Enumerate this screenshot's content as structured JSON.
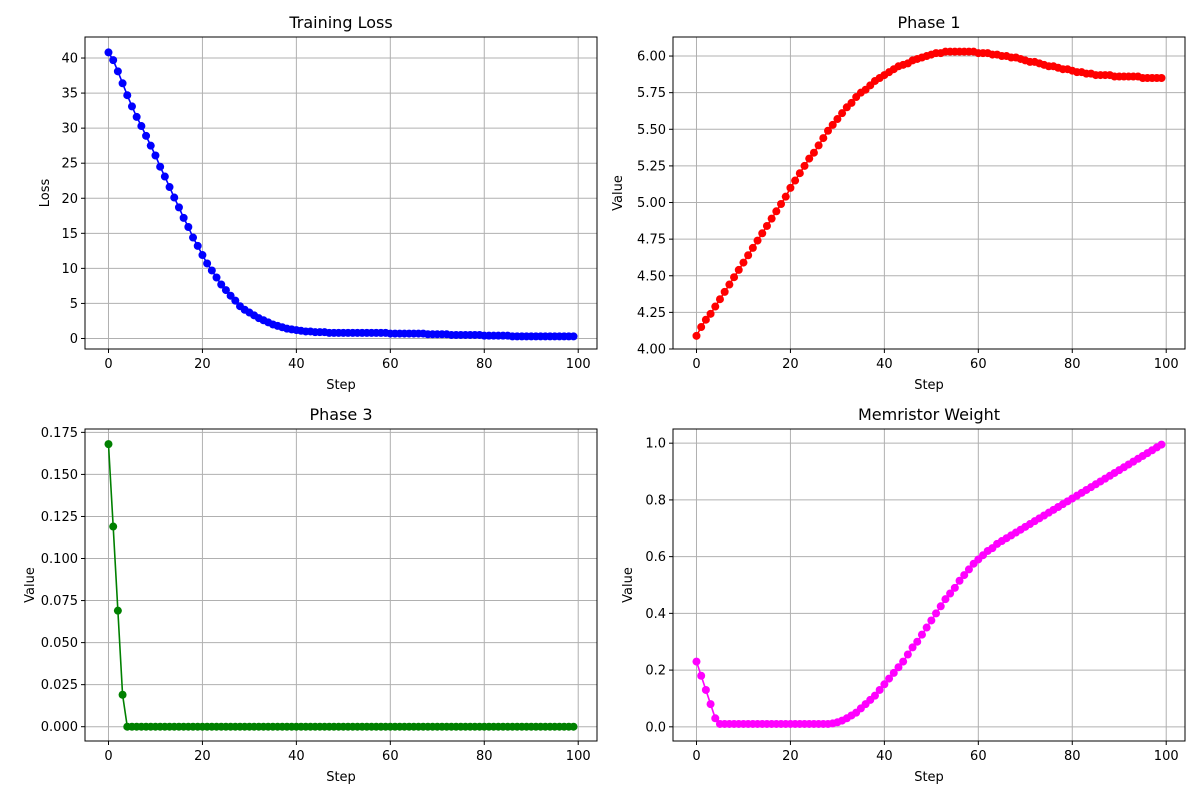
{
  "chart_data": [
    {
      "type": "line",
      "title": "Training Loss",
      "xlabel": "Step",
      "ylabel": "Loss",
      "xlim": [
        -5,
        104
      ],
      "ylim": [
        -1.5,
        43
      ],
      "xticks": [
        0,
        20,
        40,
        60,
        80,
        100
      ],
      "yticks": [
        0,
        5,
        10,
        15,
        20,
        25,
        30,
        35,
        40
      ],
      "ytick_decimals": 0,
      "grid": true,
      "color": "#0000ff",
      "marker": "circle",
      "series": [
        {
          "x_start": 0,
          "x_step": 1,
          "values": [
            40.8,
            39.7,
            38.1,
            36.4,
            34.7,
            33.1,
            31.6,
            30.3,
            28.9,
            27.5,
            26.1,
            24.5,
            23.1,
            21.6,
            20.1,
            18.7,
            17.2,
            15.9,
            14.4,
            13.2,
            11.9,
            10.7,
            9.7,
            8.7,
            7.7,
            6.9,
            6.1,
            5.4,
            4.6,
            4.1,
            3.7,
            3.3,
            2.9,
            2.6,
            2.3,
            2.0,
            1.8,
            1.6,
            1.4,
            1.3,
            1.2,
            1.1,
            1.0,
            1.0,
            0.9,
            0.9,
            0.9,
            0.8,
            0.8,
            0.8,
            0.8,
            0.8,
            0.8,
            0.8,
            0.8,
            0.8,
            0.8,
            0.8,
            0.8,
            0.8,
            0.7,
            0.7,
            0.7,
            0.7,
            0.7,
            0.7,
            0.7,
            0.7,
            0.6,
            0.6,
            0.6,
            0.6,
            0.6,
            0.5,
            0.5,
            0.5,
            0.5,
            0.5,
            0.5,
            0.5,
            0.4,
            0.4,
            0.4,
            0.4,
            0.4,
            0.4,
            0.3,
            0.3,
            0.3,
            0.3,
            0.3,
            0.3,
            0.3,
            0.3,
            0.3,
            0.3,
            0.3,
            0.3,
            0.3,
            0.3
          ]
        }
      ]
    },
    {
      "type": "line",
      "title": "Phase 1",
      "xlabel": "Step",
      "ylabel": "Value",
      "xlim": [
        -5,
        104
      ],
      "ylim": [
        4.0,
        6.13
      ],
      "xticks": [
        0,
        20,
        40,
        60,
        80,
        100
      ],
      "yticks": [
        4.0,
        4.25,
        4.5,
        4.75,
        5.0,
        5.25,
        5.5,
        5.75,
        6.0
      ],
      "ytick_decimals": 2,
      "grid": true,
      "color": "#ff0000",
      "marker": "circle",
      "series": [
        {
          "x_start": 0,
          "x_step": 1,
          "values": [
            4.09,
            4.15,
            4.2,
            4.24,
            4.29,
            4.34,
            4.39,
            4.44,
            4.49,
            4.54,
            4.59,
            4.64,
            4.69,
            4.74,
            4.79,
            4.84,
            4.89,
            4.94,
            4.99,
            5.04,
            5.1,
            5.15,
            5.2,
            5.25,
            5.3,
            5.34,
            5.39,
            5.44,
            5.49,
            5.53,
            5.57,
            5.61,
            5.65,
            5.68,
            5.72,
            5.75,
            5.77,
            5.8,
            5.83,
            5.85,
            5.87,
            5.89,
            5.91,
            5.93,
            5.94,
            5.95,
            5.97,
            5.98,
            5.99,
            6.0,
            6.01,
            6.02,
            6.02,
            6.03,
            6.03,
            6.03,
            6.03,
            6.03,
            6.03,
            6.03,
            6.02,
            6.02,
            6.02,
            6.01,
            6.01,
            6.0,
            6.0,
            5.99,
            5.99,
            5.98,
            5.97,
            5.96,
            5.96,
            5.95,
            5.94,
            5.93,
            5.93,
            5.92,
            5.91,
            5.91,
            5.9,
            5.89,
            5.89,
            5.88,
            5.88,
            5.87,
            5.87,
            5.87,
            5.87,
            5.86,
            5.86,
            5.86,
            5.86,
            5.86,
            5.86,
            5.85,
            5.85,
            5.85,
            5.85,
            5.85
          ]
        }
      ]
    },
    {
      "type": "line",
      "title": "Phase 3",
      "xlabel": "Step",
      "ylabel": "Value",
      "xlim": [
        -5,
        104
      ],
      "ylim": [
        -0.0085,
        0.177
      ],
      "xticks": [
        0,
        20,
        40,
        60,
        80,
        100
      ],
      "yticks": [
        0.0,
        0.025,
        0.05,
        0.075,
        0.1,
        0.125,
        0.15,
        0.175
      ],
      "ytick_decimals": 3,
      "grid": true,
      "color": "#008000",
      "marker": "circle",
      "series": [
        {
          "x_start": 0,
          "x_step": 1,
          "values": [
            0.168,
            0.119,
            0.069,
            0.019,
            0,
            0,
            0,
            0,
            0,
            0,
            0,
            0,
            0,
            0,
            0,
            0,
            0,
            0,
            0,
            0,
            0,
            0,
            0,
            0,
            0,
            0,
            0,
            0,
            0,
            0,
            0,
            0,
            0,
            0,
            0,
            0,
            0,
            0,
            0,
            0,
            0,
            0,
            0,
            0,
            0,
            0,
            0,
            0,
            0,
            0,
            0,
            0,
            0,
            0,
            0,
            0,
            0,
            0,
            0,
            0,
            0,
            0,
            0,
            0,
            0,
            0,
            0,
            0,
            0,
            0,
            0,
            0,
            0,
            0,
            0,
            0,
            0,
            0,
            0,
            0,
            0,
            0,
            0,
            0,
            0,
            0,
            0,
            0,
            0,
            0,
            0,
            0,
            0,
            0,
            0,
            0,
            0,
            0,
            0,
            0
          ]
        }
      ]
    },
    {
      "type": "line",
      "title": "Memristor Weight",
      "xlabel": "Step",
      "ylabel": "Value",
      "xlim": [
        -5,
        104
      ],
      "ylim": [
        -0.05,
        1.05
      ],
      "xticks": [
        0,
        20,
        40,
        60,
        80,
        100
      ],
      "yticks": [
        0.0,
        0.2,
        0.4,
        0.6,
        0.8,
        1.0
      ],
      "ytick_decimals": 1,
      "grid": true,
      "color": "#ff00ff",
      "marker": "circle",
      "series": [
        {
          "x_start": 0,
          "x_step": 1,
          "values": [
            0.23,
            0.18,
            0.13,
            0.08,
            0.03,
            0.01,
            0.01,
            0.01,
            0.01,
            0.01,
            0.01,
            0.01,
            0.01,
            0.01,
            0.01,
            0.01,
            0.01,
            0.01,
            0.01,
            0.01,
            0.01,
            0.01,
            0.01,
            0.01,
            0.01,
            0.01,
            0.01,
            0.01,
            0.01,
            0.012,
            0.016,
            0.022,
            0.03,
            0.04,
            0.05,
            0.065,
            0.08,
            0.095,
            0.11,
            0.13,
            0.15,
            0.17,
            0.19,
            0.21,
            0.23,
            0.255,
            0.28,
            0.3,
            0.325,
            0.35,
            0.375,
            0.4,
            0.425,
            0.45,
            0.47,
            0.49,
            0.515,
            0.535,
            0.555,
            0.575,
            0.59,
            0.605,
            0.62,
            0.63,
            0.645,
            0.655,
            0.665,
            0.675,
            0.685,
            0.695,
            0.705,
            0.715,
            0.725,
            0.735,
            0.745,
            0.755,
            0.765,
            0.775,
            0.785,
            0.795,
            0.805,
            0.815,
            0.825,
            0.835,
            0.845,
            0.855,
            0.865,
            0.875,
            0.885,
            0.895,
            0.905,
            0.915,
            0.925,
            0.935,
            0.945,
            0.955,
            0.965,
            0.975,
            0.985,
            0.995
          ]
        }
      ]
    }
  ]
}
